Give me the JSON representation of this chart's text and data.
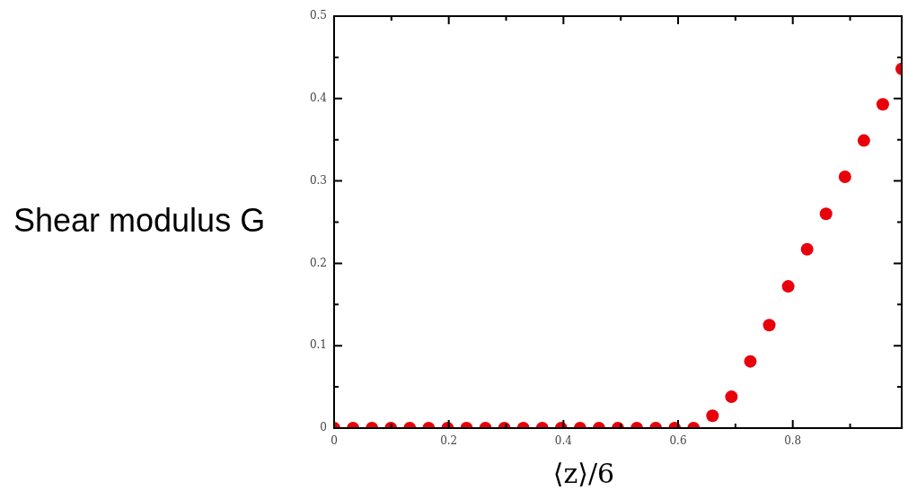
{
  "chart_data": {
    "type": "scatter",
    "xlabel": "⟨z⟩/6",
    "ylabel": "Shear modulus G",
    "x": [
      0,
      0.033,
      0.066,
      0.099,
      0.132,
      0.165,
      0.198,
      0.231,
      0.264,
      0.297,
      0.33,
      0.363,
      0.396,
      0.429,
      0.462,
      0.495,
      0.528,
      0.561,
      0.594,
      0.627,
      0.66,
      0.693,
      0.726,
      0.759,
      0.792,
      0.825,
      0.858,
      0.891,
      0.924,
      0.957,
      0.99
    ],
    "series": [
      {
        "color": "#e8000b",
        "values": [
          0,
          0,
          0,
          0,
          0,
          0,
          0,
          0,
          0,
          0,
          0,
          0,
          0,
          0,
          0,
          0,
          0,
          0,
          0,
          0,
          0.015,
          0.038,
          0.081,
          0.125,
          0.172,
          0.217,
          0.26,
          0.305,
          0.349,
          0.393,
          0.436
        ]
      }
    ],
    "marker": "circle",
    "xlim": [
      0,
      0.99
    ],
    "xticks": [
      0,
      {
        "value": 0.1,
        "label": null
      },
      0.2,
      {
        "value": 0.3,
        "label": null
      },
      0.4,
      {
        "value": 0.5,
        "label": null
      },
      0.6,
      {
        "value": 0.7,
        "label": null
      },
      0.8,
      {
        "value": 0.9,
        "label": null
      }
    ],
    "ylim": [
      0,
      0.5
    ],
    "yticks": [
      0,
      {
        "value": 0.05,
        "label": null
      },
      0.1,
      {
        "value": 0.15,
        "label": null
      },
      0.2,
      {
        "value": 0.25,
        "label": null
      },
      0.3,
      {
        "value": 0.35,
        "label": null
      },
      0.4,
      {
        "value": 0.45,
        "label": null
      },
      0.5
    ]
  }
}
